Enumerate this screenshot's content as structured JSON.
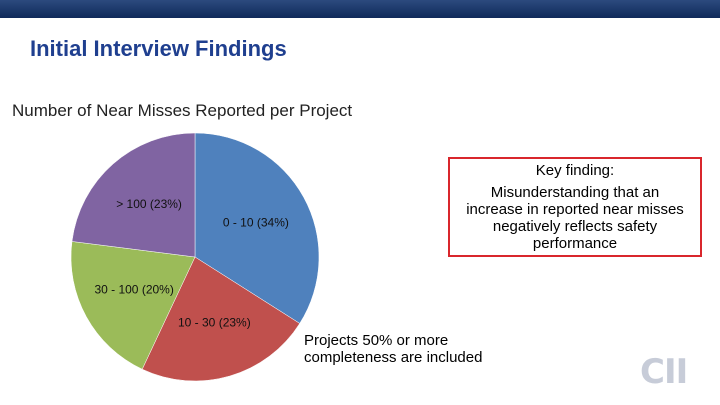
{
  "header": {
    "title": "Initial Interview Findings"
  },
  "chart_data": {
    "type": "pie",
    "title": "Number of Near Misses Reported per Project",
    "categories": [
      "0 - 10",
      "10 - 30",
      "30 - 100",
      "> 100"
    ],
    "values": [
      34,
      23,
      20,
      23
    ],
    "value_labels": [
      "(34%)",
      "(23%)",
      "(20%)",
      "(23%)"
    ],
    "colors": [
      "#4f81bd",
      "#c0504d",
      "#9bbb59",
      "#8064a2"
    ]
  },
  "callout": {
    "heading": "Key finding:",
    "body": "Misunderstanding that an increase in reported near misses negatively reflects safety performance"
  },
  "note": "Projects 50% or more completeness are included",
  "logo": "CII"
}
